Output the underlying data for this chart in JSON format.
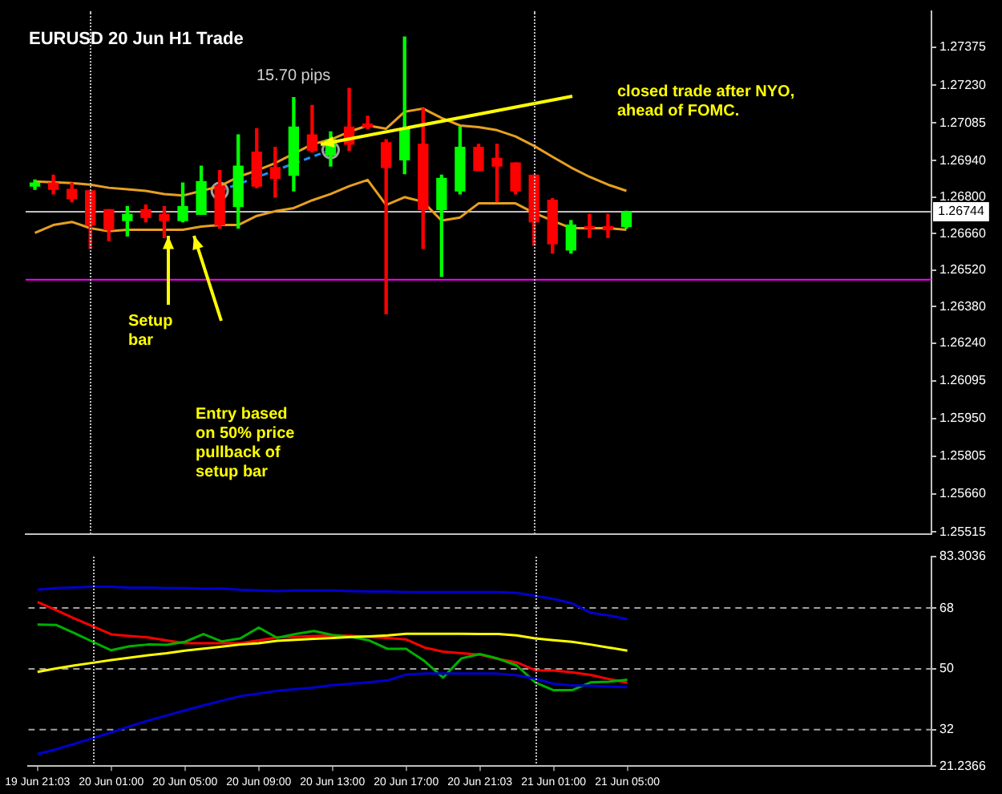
{
  "chart_data": [
    {
      "type": "candlestick",
      "title": "EURUSD 20 Jun H1 Trade",
      "categories": [
        null,
        null,
        null,
        null,
        null,
        null,
        null,
        null,
        null,
        null,
        null,
        null,
        null,
        null,
        null,
        null,
        null,
        null,
        null,
        null,
        null,
        null,
        null,
        null,
        null,
        null,
        null,
        null,
        null,
        null,
        null,
        null,
        null
      ],
      "ohlc": [
        [
          1.26842,
          1.26866,
          1.2683,
          1.26854
        ],
        [
          1.26854,
          1.26884,
          1.26812,
          1.2683
        ],
        [
          1.2683,
          1.26854,
          1.26782,
          1.26794
        ],
        [
          1.26824,
          1.26824,
          1.26603,
          1.26693
        ],
        [
          1.26752,
          1.26752,
          1.26633,
          1.26675
        ],
        [
          1.2671,
          1.26764,
          1.26651,
          1.26734
        ],
        [
          1.26752,
          1.2677,
          1.26705,
          1.26722
        ],
        [
          1.26734,
          1.26764,
          1.26645,
          1.2671
        ],
        [
          1.2671,
          1.26854,
          1.26705,
          1.26764
        ],
        [
          1.26734,
          1.26919,
          1.26734,
          1.2686
        ],
        [
          1.26842,
          1.26902,
          1.26681,
          1.26693
        ],
        [
          1.26764,
          1.27039,
          1.26681,
          1.26919
        ],
        [
          1.26973,
          1.27063,
          1.26836,
          1.26842
        ],
        [
          1.26914,
          1.26991,
          1.268,
          1.26872
        ],
        [
          1.26884,
          1.27182,
          1.26824,
          1.27069
        ],
        [
          1.27039,
          1.27152,
          1.26973,
          1.26979
        ],
        [
          1.26961,
          1.27051,
          1.26919,
          1.27021
        ],
        [
          1.27069,
          1.27218,
          1.26979,
          1.27003
        ],
        [
          1.27081,
          1.27111,
          1.27063,
          1.27069
        ],
        [
          1.27009,
          1.27021,
          1.26352,
          1.26914
        ],
        [
          1.26943,
          1.27415,
          1.2689,
          1.27063
        ],
        [
          1.27003,
          1.2714,
          1.26603,
          1.26752
        ],
        [
          1.26752,
          1.26884,
          1.26496,
          1.26872
        ],
        [
          1.26824,
          1.27069,
          1.26812,
          1.26991
        ],
        [
          1.26991,
          1.27003,
          1.26902,
          1.26902
        ],
        [
          1.26949,
          1.27003,
          1.26782,
          1.26919
        ],
        [
          1.26931,
          1.26931,
          1.26812,
          1.26824
        ],
        [
          1.26884,
          1.26884,
          1.26615,
          1.26705
        ],
        [
          1.26788,
          1.26794,
          1.26585,
          1.26621
        ],
        [
          1.26597,
          1.2671,
          1.26585,
          1.26693
        ],
        [
          1.26687,
          1.26734,
          1.26645,
          1.26681
        ],
        [
          1.26687,
          1.26734,
          1.26645,
          1.26675
        ],
        [
          1.26687,
          1.26746,
          1.26681,
          1.26744
        ]
      ],
      "colors": [
        "#00ff00",
        "#ff0000",
        "#ff0000",
        "#ff0000",
        "#ff0000",
        "#00ff00",
        "#ff0000",
        "#ff0000",
        "#00ff00",
        "#00ff00",
        "#ff0000",
        "#00ff00",
        "#ff0000",
        "#ff0000",
        "#00ff00",
        "#ff0000",
        "#00ff00",
        "#ff0000",
        "#ff0000",
        "#ff0000",
        "#00ff00",
        "#ff0000",
        "#00ff00",
        "#00ff00",
        "#ff0000",
        "#ff0000",
        "#ff0000",
        "#ff0000",
        "#ff0000",
        "#00ff00",
        "#ff0000",
        "#ff0000",
        "#00ff00"
      ],
      "series": [
        {
          "type": "line",
          "color": "#e6a020",
          "values": [
            1.2686,
            1.26857,
            1.26854,
            1.26848,
            1.26836,
            1.2683,
            1.26824,
            1.26812,
            1.26806,
            1.26824,
            1.26842,
            1.26878,
            1.26902,
            1.26931,
            1.26967,
            1.27003,
            1.27021,
            1.27051,
            1.27075,
            1.27063,
            1.27128,
            1.2714,
            1.27104,
            1.27075,
            1.27069,
            1.27057,
            1.27033,
            1.26997,
            1.26955,
            1.26914,
            1.26878,
            1.26848,
            1.26824
          ]
        },
        {
          "type": "line",
          "color": "#e6a020",
          "values": [
            1.26663,
            1.26693,
            1.26705,
            1.26681,
            1.26669,
            1.26675,
            1.26675,
            1.26675,
            1.26675,
            1.26687,
            1.26693,
            1.26693,
            1.26728,
            1.26746,
            1.26758,
            1.26788,
            1.26812,
            1.26842,
            1.26866,
            1.2677,
            1.268,
            1.26782,
            1.2671,
            1.26722,
            1.26776,
            1.26776,
            1.26776,
            1.2674,
            1.2671,
            1.26681,
            1.26681,
            1.26681,
            1.26675
          ]
        },
        {
          "type": "line",
          "color": "#1e90ff",
          "line_style": "dashed",
          "marker": "circle",
          "values": [
            null,
            null,
            null,
            null,
            null,
            null,
            null,
            null,
            null,
            null,
            1.26824,
            null,
            null,
            null,
            null,
            null,
            1.26981,
            null,
            null,
            null,
            null,
            null,
            null,
            null,
            null,
            null,
            null,
            null,
            null,
            null,
            null,
            null,
            null
          ]
        }
      ],
      "ylim": [
        1.25505,
        1.27515
      ],
      "yticks": [
        1.27375,
        {
          "value": 1.2723,
          "label": "1.27230"
        },
        1.27085,
        {
          "value": 1.2694,
          "label": "1.26940"
        },
        {
          "value": 1.268,
          "label": "1.26800"
        },
        {
          "value": 1.2666,
          "label": "1.26660"
        },
        {
          "value": 1.2652,
          "label": "1.26520"
        },
        {
          "value": 1.2638,
          "label": "1.26380"
        },
        {
          "value": 1.2624,
          "label": "1.26240"
        },
        1.26095,
        {
          "value": 1.2595,
          "label": "1.25950"
        },
        1.25805,
        {
          "value": 1.2566,
          "label": "1.25660"
        },
        1.25515
      ],
      "tick_labels": "y",
      "ref_lines": [
        {
          "axis": "y",
          "value": 1.26744,
          "label": "1.26744",
          "color": "#c0c0c0"
        },
        {
          "axis": "y",
          "value": 1.26483,
          "color": "#ff00ff"
        }
      ],
      "annotations": [
        "Setup bar",
        "Entry based on 50% price pullback of setup bar",
        "closed trade after NYO, ahead of FOMC.",
        "15.70 pips"
      ]
    },
    {
      "type": "line",
      "categories": [
        "19 Jun 21:03",
        null,
        null,
        null,
        "20 Jun 01:00",
        null,
        null,
        null,
        "20 Jun 05:00",
        null,
        null,
        null,
        "20 Jun 09:00",
        null,
        null,
        null,
        "20 Jun 13:00",
        null,
        null,
        null,
        "20 Jun 17:00",
        null,
        null,
        null,
        "20 Jun 21:03",
        null,
        null,
        null,
        "21 Jun 01:00",
        null,
        null,
        null,
        "21 Jun 05:00"
      ],
      "series": [
        {
          "color": "#0000cd",
          "values": [
            73.4,
            73.9,
            74.1,
            74.3,
            74.3,
            74.0,
            74.0,
            73.9,
            73.9,
            73.7,
            73.8,
            73.4,
            73.2,
            73.0,
            73.2,
            73.2,
            73.2,
            73.0,
            72.9,
            72.9,
            72.7,
            72.7,
            72.7,
            72.7,
            72.7,
            72.7,
            72.5,
            71.6,
            70.7,
            69.4,
            66.6,
            65.8,
            64.7
          ]
        },
        {
          "color": "#0000cd",
          "values": [
            24.8,
            26.2,
            27.8,
            29.5,
            31.2,
            33.0,
            34.7,
            36.2,
            37.7,
            39.2,
            40.6,
            41.9,
            42.7,
            43.5,
            44.0,
            44.5,
            45.2,
            45.6,
            46.0,
            46.6,
            48.3,
            48.6,
            48.6,
            48.6,
            48.6,
            48.6,
            48.1,
            47.1,
            45.6,
            45.1,
            45.0,
            44.8,
            44.6
          ]
        },
        {
          "color": "#ffff00",
          "values": [
            49.1,
            50.1,
            51.0,
            51.8,
            52.6,
            53.3,
            54.0,
            54.6,
            55.4,
            56.0,
            56.6,
            57.2,
            57.6,
            58.3,
            58.6,
            58.9,
            59.1,
            59.4,
            59.6,
            59.9,
            60.4,
            60.4,
            60.4,
            60.4,
            60.3,
            60.3,
            59.9,
            59.0,
            58.5,
            58.0,
            57.2,
            56.3,
            55.4
          ]
        },
        {
          "color": "#00b000",
          "values": [
            63.1,
            63.0,
            60.6,
            58.0,
            55.5,
            56.7,
            57.2,
            57.1,
            58.0,
            60.3,
            58.1,
            59.0,
            62.2,
            59.2,
            60.3,
            61.2,
            60.0,
            59.5,
            58.4,
            55.9,
            55.9,
            52.3,
            47.4,
            53.1,
            54.4,
            53.0,
            51.0,
            46.0,
            43.7,
            43.7,
            46.0,
            46.2,
            46.8
          ]
        },
        {
          "color": "#ff0000",
          "values": [
            69.8,
            67.4,
            64.9,
            62.6,
            60.2,
            59.7,
            59.3,
            58.4,
            57.6,
            57.6,
            57.6,
            57.6,
            58.4,
            59.3,
            59.5,
            59.7,
            59.9,
            59.8,
            59.5,
            59.1,
            58.7,
            56.3,
            55.1,
            54.6,
            54.2,
            52.9,
            51.9,
            49.6,
            49.5,
            49.0,
            48.2,
            47.0,
            45.9
          ]
        }
      ],
      "ylim": [
        21.2366,
        83.3036
      ],
      "yticks": [
        83.3036,
        68,
        50,
        32,
        21.2366
      ],
      "ref_lines": [
        {
          "axis": "y",
          "value": 68,
          "color": "#a0a0a0",
          "line_style": "dashed"
        },
        {
          "axis": "y",
          "value": 50,
          "color": "#a0a0a0",
          "line_style": "dashed"
        },
        {
          "axis": "y",
          "value": 32,
          "color": "#a0a0a0",
          "line_style": "dashed"
        }
      ]
    }
  ]
}
